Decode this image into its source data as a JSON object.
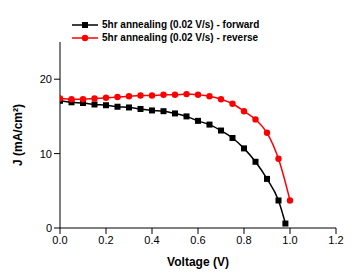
{
  "chart_data": {
    "type": "line",
    "x_label": "Voltage (V)",
    "y_label": "J (mA/cm²)",
    "xlim": [
      0,
      1.2
    ],
    "xticks": [
      {
        "value": 0,
        "label": "0.0"
      },
      {
        "value": 0.2,
        "label": "0.2"
      },
      {
        "value": 0.4,
        "label": "0.4"
      },
      {
        "value": 0.6,
        "label": "0.6"
      },
      {
        "value": 0.8,
        "label": "0.8"
      },
      {
        "value": 1.0,
        "label": "1.0"
      },
      {
        "value": 1.2,
        "label": "1.2"
      }
    ],
    "ylim": [
      0,
      25
    ],
    "yticks": [
      0,
      10,
      20
    ],
    "grid": false,
    "legend": "upper left",
    "series": [
      {
        "name": "5hr annealing (0.02 V/s) - forward",
        "color": "#000000",
        "marker": "square",
        "x": [
          0,
          0.05,
          0.1,
          0.15,
          0.2,
          0.25,
          0.3,
          0.35,
          0.4,
          0.45,
          0.5,
          0.55,
          0.6,
          0.65,
          0.7,
          0.75,
          0.8,
          0.85,
          0.9,
          0.95,
          0.98
        ],
        "values": [
          17.1,
          16.9,
          16.8,
          16.6,
          16.5,
          16.3,
          16.2,
          16.0,
          15.8,
          15.7,
          15.4,
          15.0,
          14.4,
          13.9,
          13.1,
          12.1,
          10.7,
          8.9,
          6.6,
          3.7,
          0.6
        ]
      },
      {
        "name": "5hr annealing (0.02 V/s) - reverse",
        "color": "#ff0000",
        "marker": "circle",
        "x": [
          0,
          0.05,
          0.1,
          0.15,
          0.2,
          0.25,
          0.3,
          0.35,
          0.4,
          0.45,
          0.5,
          0.55,
          0.6,
          0.65,
          0.7,
          0.75,
          0.8,
          0.85,
          0.9,
          0.95,
          1.0
        ],
        "values": [
          17.4,
          17.3,
          17.3,
          17.4,
          17.5,
          17.6,
          17.7,
          17.8,
          17.8,
          17.9,
          17.9,
          18.0,
          17.9,
          17.7,
          17.3,
          16.7,
          15.7,
          14.6,
          12.8,
          9.3,
          3.7
        ]
      }
    ]
  }
}
